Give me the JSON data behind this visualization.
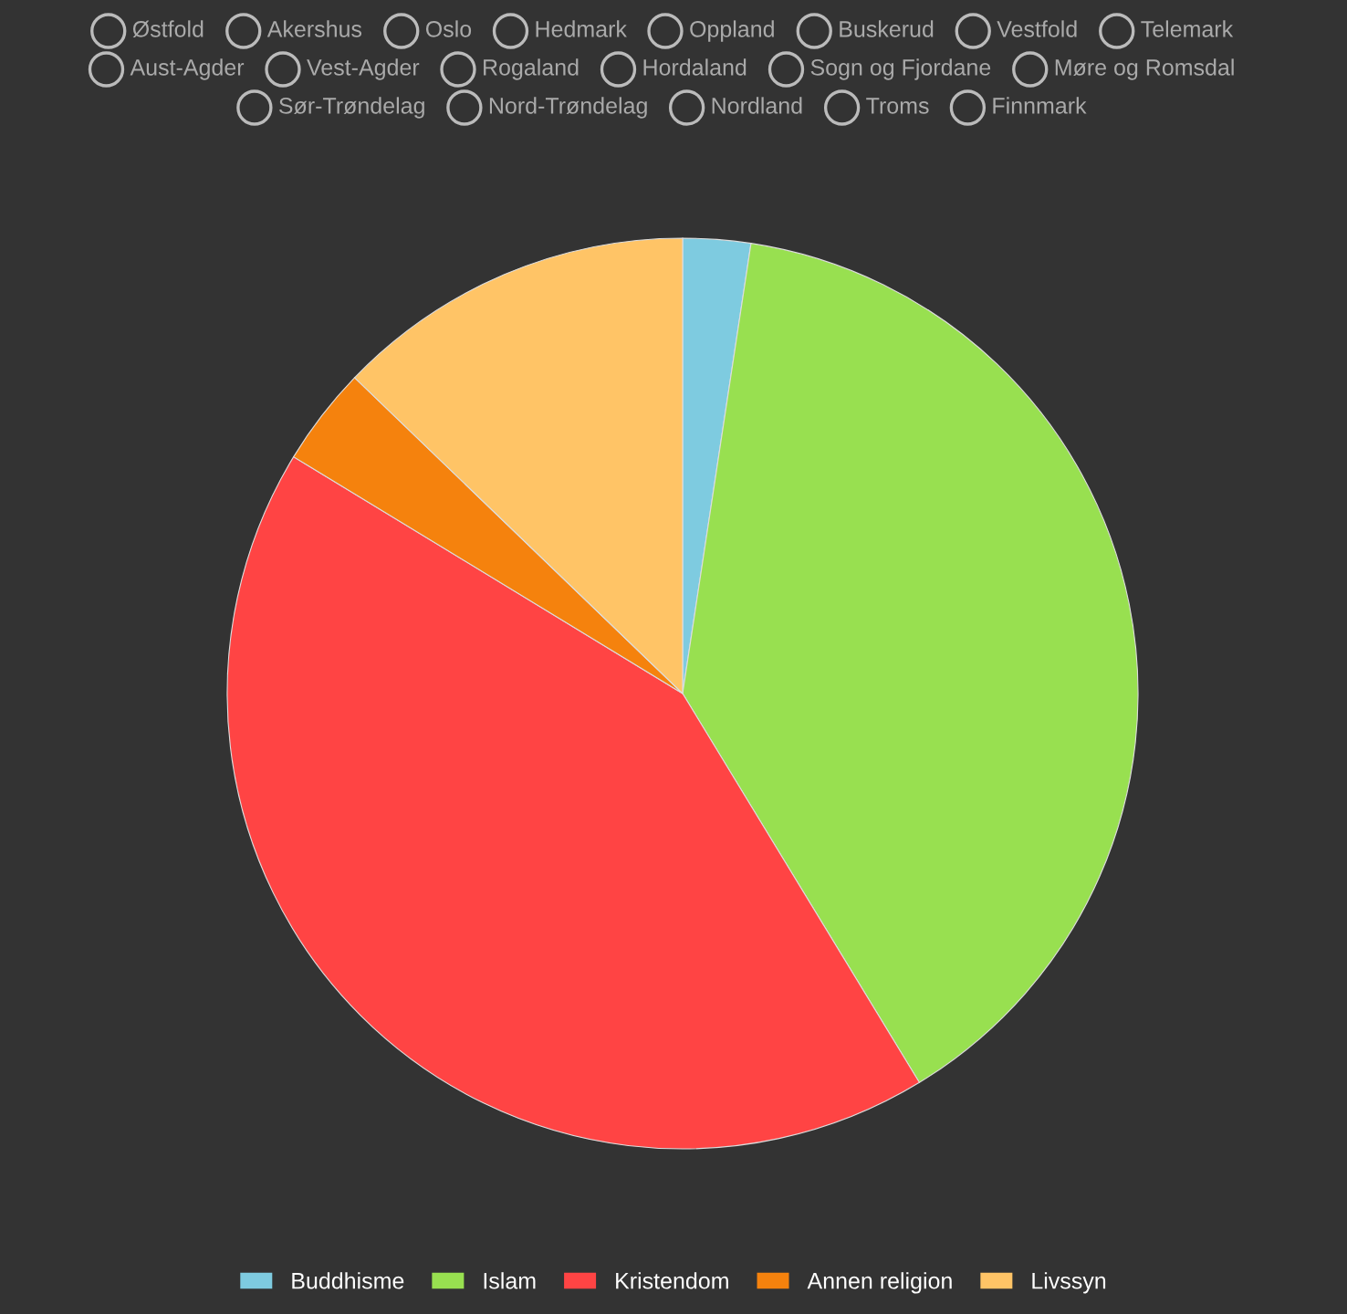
{
  "chart_data": {
    "type": "pie",
    "categories": [
      "Buddhisme",
      "Islam",
      "Kristendom",
      "Annen religion",
      "Livssyn"
    ],
    "values": [
      2.4,
      38.9,
      42.4,
      3.5,
      12.8
    ],
    "colors": [
      "#7ecbe0",
      "#98e050",
      "#ff4444",
      "#f5820d",
      "#ffc466"
    ],
    "legend": "bottom",
    "annotations": [
      "Østfold",
      "Akershus",
      "Oslo",
      "Hedmark",
      "Oppland",
      "Buskerud",
      "Vestfold",
      "Telemark",
      "Aust-Agder",
      "Vest-Agder",
      "Rogaland",
      "Hordaland",
      "Sogn og Fjordane",
      "Møre og Romsdal",
      "Sør-Trøndelag",
      "Nord-Trøndelag",
      "Nordland",
      "Troms",
      "Finnmark"
    ]
  }
}
